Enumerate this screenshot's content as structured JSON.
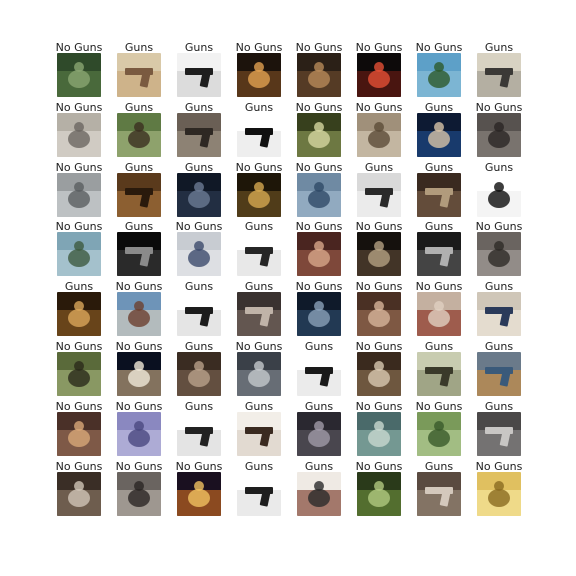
{
  "figure": {
    "rows": [
      [
        {
          "label": "No Guns",
          "colors": [
            "#2f4a2a",
            "#577a45",
            "#8aa572"
          ],
          "subject": "dog-on-grass"
        },
        {
          "label": "Guns",
          "colors": [
            "#d9c9a8",
            "#c8a77a",
            "#7a5a40"
          ],
          "subject": "hand-with-pistol"
        },
        {
          "label": "Guns",
          "colors": [
            "#f2f2f2",
            "#d0d0d0",
            "#1e1e1e"
          ],
          "subject": "pistol"
        },
        {
          "label": "No Guns",
          "colors": [
            "#1c130c",
            "#7a4b22",
            "#e1a050"
          ],
          "subject": "night-lights"
        },
        {
          "label": "No Guns",
          "colors": [
            "#2b2017",
            "#6c4a2c",
            "#b78959"
          ],
          "subject": "people-at-dinner"
        },
        {
          "label": "No Guns",
          "colors": [
            "#0d0a0a",
            "#6a1c14",
            "#e34f35"
          ],
          "subject": "fireworks"
        },
        {
          "label": "No Guns",
          "colors": [
            "#5da0c8",
            "#8ec0d8",
            "#2d5a2c"
          ],
          "subject": "palm-trees"
        },
        {
          "label": "Guns",
          "colors": [
            "#d8d2c2",
            "#a19c90",
            "#3b3936"
          ],
          "subject": "gun-closeup"
        }
      ],
      [
        {
          "label": "No Guns",
          "colors": [
            "#b5b0a6",
            "#dedad2",
            "#6b6761"
          ],
          "subject": "cat"
        },
        {
          "label": "Guns",
          "colors": [
            "#5f7a44",
            "#a8b982",
            "#3b3021"
          ],
          "subject": "person-with-rifle"
        },
        {
          "label": "Guns",
          "colors": [
            "#6a5f55",
            "#a09586",
            "#2e2823"
          ],
          "subject": "man-with-gun"
        },
        {
          "label": "Guns",
          "colors": [
            "#ffffff",
            "#e5e5e5",
            "#111111"
          ],
          "subject": "panda-with-gun"
        },
        {
          "label": "No Guns",
          "colors": [
            "#37401d",
            "#8a9656",
            "#d4d6a0"
          ],
          "subject": "moss-closeup"
        },
        {
          "label": "No Guns",
          "colors": [
            "#a0907a",
            "#d6cbb7",
            "#5c4c38"
          ],
          "subject": "room-interior"
        },
        {
          "label": "Guns",
          "colors": [
            "#0d1a33",
            "#1f4c8c",
            "#d7c3a8"
          ],
          "subject": "man-aiming"
        },
        {
          "label": "No Guns",
          "colors": [
            "#57524f",
            "#8c8580",
            "#2a2624"
          ],
          "subject": "cat-dark"
        }
      ],
      [
        {
          "label": "No Guns",
          "colors": [
            "#9a9ea0",
            "#d0d4d6",
            "#5a5e60"
          ],
          "subject": "metal-structure"
        },
        {
          "label": "Guns",
          "colors": [
            "#5a3a1c",
            "#a8733e",
            "#2a1a0c"
          ],
          "subject": "pistol-on-table"
        },
        {
          "label": "Guns",
          "colors": [
            "#101826",
            "#2c3a52",
            "#6c7b93"
          ],
          "subject": "night-city"
        },
        {
          "label": "No Guns",
          "colors": [
            "#1e1608",
            "#6c5224",
            "#d4a850"
          ],
          "subject": "lit-hallway"
        },
        {
          "label": "No Guns",
          "colors": [
            "#6f8aa3",
            "#a3bbcf",
            "#2f4a66"
          ],
          "subject": "sailboats"
        },
        {
          "label": "Guns",
          "colors": [
            "#d9d9d9",
            "#f5f5f5",
            "#2a2a2a"
          ],
          "subject": "woman-with-gun"
        },
        {
          "label": "Guns",
          "colors": [
            "#3a2a20",
            "#7a5f48",
            "#b19b7c"
          ],
          "subject": "couple-with-gun"
        },
        {
          "label": "Guns",
          "colors": [
            "#ffffff",
            "#eeeeee",
            "#0d0d0d"
          ],
          "subject": "silhouette-shooter"
        }
      ],
      [
        {
          "label": "No Guns",
          "colors": [
            "#7fa5b5",
            "#b8d0d8",
            "#3d5a40"
          ],
          "subject": "lake-shore"
        },
        {
          "label": "Guns",
          "colors": [
            "#0a0a0a",
            "#3c3c3c",
            "#8a8a8a"
          ],
          "subject": "gun-on-black"
        },
        {
          "label": "No Guns",
          "colors": [
            "#c8ccd2",
            "#e8eaec",
            "#3c4a6c"
          ],
          "subject": "bus"
        },
        {
          "label": "Guns",
          "colors": [
            "#ffffff",
            "#dcdcdc",
            "#262626"
          ],
          "subject": "large-pistol"
        },
        {
          "label": "No Guns",
          "colors": [
            "#4a2520",
            "#9a5a48",
            "#d7a68a"
          ],
          "subject": "group-of-people"
        },
        {
          "label": "No Guns",
          "colors": [
            "#15110d",
            "#5a4836",
            "#b3a082"
          ],
          "subject": "skull"
        },
        {
          "label": "Guns",
          "colors": [
            "#1a1a1a",
            "#5a5a5a",
            "#b0b0b0"
          ],
          "subject": "bridge-with-gun"
        },
        {
          "label": "No Guns",
          "colors": [
            "#6a6460",
            "#a8a29e",
            "#2e2a27"
          ],
          "subject": "cat-black-white"
        }
      ],
      [
        {
          "label": "Guns",
          "colors": [
            "#2a1a0a",
            "#8a5a24",
            "#d9a65a"
          ],
          "subject": "barrel-closeup"
        },
        {
          "label": "No Guns",
          "colors": [
            "#6e94b8",
            "#d8cfc0",
            "#6b4030"
          ],
          "subject": "sign-post"
        },
        {
          "label": "Guns",
          "colors": [
            "#ffffff",
            "#d7d7d7",
            "#1c1c1c"
          ],
          "subject": "compact-pistol"
        },
        {
          "label": "Guns",
          "colors": [
            "#3a3230",
            "#7a6a62",
            "#c0b3a8"
          ],
          "subject": "group-with-guns"
        },
        {
          "label": "No Guns",
          "colors": [
            "#0f1a2a",
            "#2c4a6a",
            "#8aa0b8"
          ],
          "subject": "dark-figure"
        },
        {
          "label": "No Guns",
          "colors": [
            "#4a3024",
            "#9a6e54",
            "#d6b49a"
          ],
          "subject": "couple"
        },
        {
          "label": "No Guns",
          "colors": [
            "#c4b0a0",
            "#8a3020",
            "#e0d0c0"
          ],
          "subject": "motorcycle"
        },
        {
          "label": "Guns",
          "colors": [
            "#cfc6b8",
            "#efe8dc",
            "#2a3a5a"
          ],
          "subject": "gun-on-paper"
        }
      ],
      [
        {
          "label": "No Guns",
          "colors": [
            "#5a6a3a",
            "#a3b07a",
            "#2a2a1a"
          ],
          "subject": "cows-in-field"
        },
        {
          "label": "No Guns",
          "colors": [
            "#0a1020",
            "#c4a880",
            "#f0e8d8"
          ],
          "subject": "tent-at-night"
        },
        {
          "label": "Guns",
          "colors": [
            "#3a2c22",
            "#7a6252",
            "#b8a08a"
          ],
          "subject": "man-portrait"
        },
        {
          "label": "No Guns",
          "colors": [
            "#3a4048",
            "#80868e",
            "#c4c8cc"
          ],
          "subject": "woman-on-phone"
        },
        {
          "label": "Guns",
          "colors": [
            "#ffffff",
            "#e0e0e0",
            "#1a1a1a"
          ],
          "subject": "white-background-pistol"
        },
        {
          "label": "No Guns",
          "colors": [
            "#3a2a1e",
            "#8a7052",
            "#d8c8b0"
          ],
          "subject": "hand-with-paper"
        },
        {
          "label": "Guns",
          "colors": [
            "#c8ccb0",
            "#8a9070",
            "#3a3a2a"
          ],
          "subject": "hanging-gun"
        },
        {
          "label": "Guns",
          "colors": [
            "#6a7a8a",
            "#d09040",
            "#3a5a7a"
          ],
          "subject": "boy-with-gun"
        }
      ],
      [
        {
          "label": "No Guns",
          "colors": [
            "#4a3028",
            "#9a7058",
            "#d8a878"
          ],
          "subject": "family-photo"
        },
        {
          "label": "No Guns",
          "colors": [
            "#8a88c0",
            "#c0bee0",
            "#4a4880"
          ],
          "subject": "bicycle"
        },
        {
          "label": "Guns",
          "colors": [
            "#ffffff",
            "#d6d6d6",
            "#222222"
          ],
          "subject": "steel-pistol"
        },
        {
          "label": "Guns",
          "colors": [
            "#f2eee8",
            "#d8cfc4",
            "#3a2a20"
          ],
          "subject": "woman-holding-gun"
        },
        {
          "label": "Guns",
          "colors": [
            "#2a2830",
            "#5a5660",
            "#a09aa8"
          ],
          "subject": "couple-dark"
        },
        {
          "label": "No Guns",
          "colors": [
            "#4a6a6a",
            "#8ab0a8",
            "#c8d8d0"
          ],
          "subject": "green-hand"
        },
        {
          "label": "No Guns",
          "colors": [
            "#7a9a5a",
            "#b8d09a",
            "#3a5a2a"
          ],
          "subject": "person-in-field"
        },
        {
          "label": "Guns",
          "colors": [
            "#4a4848",
            "#8a8888",
            "#c8c6c4"
          ],
          "subject": "gun-parts"
        }
      ],
      [
        {
          "label": "No Guns",
          "colors": [
            "#3a2e26",
            "#8a7664",
            "#d0c4b6"
          ],
          "subject": "dog-on-couch"
        },
        {
          "label": "No Guns",
          "colors": [
            "#6a6460",
            "#bab2aa",
            "#2a2624"
          ],
          "subject": "knife-on-table"
        },
        {
          "label": "No Guns",
          "colors": [
            "#1a1020",
            "#c86a20",
            "#f0c060"
          ],
          "subject": "sunset"
        },
        {
          "label": "Guns",
          "colors": [
            "#ffffff",
            "#dedede",
            "#1e1e1e"
          ],
          "subject": "black-pistol"
        },
        {
          "label": "Guns",
          "colors": [
            "#efeae4",
            "#7a3a2a",
            "#2a2a2a"
          ],
          "subject": "poster-collage"
        },
        {
          "label": "No Guns",
          "colors": [
            "#2a3a1a",
            "#6a8a3a",
            "#b0c880"
          ],
          "subject": "plant-closeup"
        },
        {
          "label": "Guns",
          "colors": [
            "#5a4a40",
            "#9a8878",
            "#d4c8bc"
          ],
          "subject": "two-people-with-guns"
        },
        {
          "label": "No Guns",
          "colors": [
            "#e0c060",
            "#f8e8a0",
            "#8a6a20"
          ],
          "subject": "bright-room"
        }
      ]
    ]
  }
}
